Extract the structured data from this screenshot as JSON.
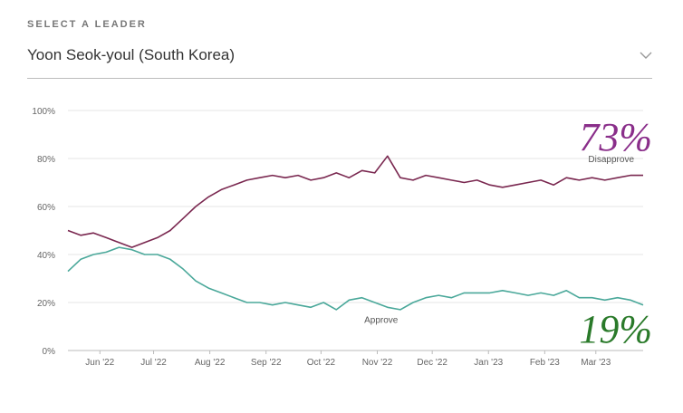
{
  "header": {
    "select_label": "SELECT A LEADER",
    "selected_leader": "Yoon Seok-youl (South Korea)",
    "dropdown_icon": "chevron-down-icon"
  },
  "chart_data": {
    "type": "line",
    "ylim": [
      0,
      100
    ],
    "yticks": [
      0,
      20,
      40,
      60,
      80,
      100
    ],
    "ytick_labels": [
      "0%",
      "20%",
      "40%",
      "60%",
      "80%",
      "100%"
    ],
    "x_ticks": [
      "Jun '22",
      "Jul '22",
      "Aug '22",
      "Sep '22",
      "Oct '22",
      "Nov '22",
      "Dec '22",
      "Jan '23",
      "Feb '23",
      "Mar '23"
    ],
    "x_unit": "weeks since mid-May 2022",
    "x_tick_positions": [
      2.5,
      6.7,
      11.1,
      15.5,
      19.8,
      24.2,
      28.5,
      32.9,
      37.3,
      41.3
    ],
    "x_range": [
      0,
      45
    ],
    "grid": true,
    "colors": {
      "disapprove": "#7a2850",
      "approve": "#4aa89a",
      "disapprove_label": "#8a2e8a",
      "approve_label": "#2a7a2a"
    },
    "series": [
      {
        "name": "Disapprove",
        "x": [
          0,
          1,
          2,
          3,
          4,
          5,
          6,
          7,
          8,
          9,
          10,
          11,
          12,
          13,
          14,
          15,
          16,
          17,
          18,
          19,
          20,
          21,
          22,
          23,
          24,
          25,
          26,
          27,
          28,
          29,
          30,
          31,
          32,
          33,
          34,
          35,
          36,
          37,
          38,
          39,
          40,
          41,
          42,
          43,
          44,
          45
        ],
        "values": [
          50,
          48,
          49,
          47,
          45,
          43,
          45,
          47,
          50,
          55,
          60,
          64,
          67,
          69,
          71,
          72,
          73,
          72,
          73,
          71,
          72,
          74,
          72,
          75,
          74,
          81,
          72,
          71,
          73,
          72,
          71,
          70,
          71,
          69,
          68,
          69,
          70,
          71,
          69,
          72,
          71,
          72,
          71,
          72,
          73,
          73
        ],
        "label": "Disapprove",
        "big_label": "73%"
      },
      {
        "name": "Approve",
        "x": [
          0,
          1,
          2,
          3,
          4,
          5,
          6,
          7,
          8,
          9,
          10,
          11,
          12,
          13,
          14,
          15,
          16,
          17,
          18,
          19,
          20,
          21,
          22,
          23,
          24,
          25,
          26,
          27,
          28,
          29,
          30,
          31,
          32,
          33,
          34,
          35,
          36,
          37,
          38,
          39,
          40,
          41,
          42,
          43,
          44,
          45
        ],
        "values": [
          33,
          38,
          40,
          41,
          43,
          42,
          40,
          40,
          38,
          34,
          29,
          26,
          24,
          22,
          20,
          20,
          19,
          20,
          19,
          18,
          20,
          17,
          21,
          22,
          20,
          18,
          17,
          20,
          22,
          23,
          22,
          24,
          24,
          24,
          25,
          24,
          23,
          24,
          23,
          25,
          22,
          22,
          21,
          22,
          21,
          19
        ],
        "label": "Approve",
        "big_label": "19%"
      }
    ]
  }
}
